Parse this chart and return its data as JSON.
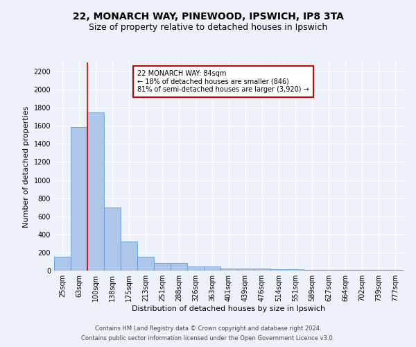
{
  "title1": "22, MONARCH WAY, PINEWOOD, IPSWICH, IP8 3TA",
  "title2": "Size of property relative to detached houses in Ipswich",
  "xlabel": "Distribution of detached houses by size in Ipswich",
  "ylabel": "Number of detached properties",
  "categories": [
    "25sqm",
    "63sqm",
    "100sqm",
    "138sqm",
    "175sqm",
    "213sqm",
    "251sqm",
    "288sqm",
    "326sqm",
    "363sqm",
    "401sqm",
    "439sqm",
    "476sqm",
    "514sqm",
    "551sqm",
    "589sqm",
    "627sqm",
    "664sqm",
    "702sqm",
    "739sqm",
    "777sqm"
  ],
  "values": [
    155,
    1590,
    1750,
    700,
    320,
    155,
    85,
    85,
    45,
    45,
    25,
    20,
    20,
    15,
    15,
    10,
    10,
    5,
    5,
    5,
    5
  ],
  "bar_color": "#aec6e8",
  "bar_edge_color": "#5b9bd5",
  "vline_color": "#cc0000",
  "vline_x_index": 1.5,
  "annotation_text": "22 MONARCH WAY: 84sqm\n← 18% of detached houses are smaller (846)\n81% of semi-detached houses are larger (3,920) →",
  "annotation_box_color": "#ffffff",
  "annotation_box_edge": "#cc0000",
  "ylim": [
    0,
    2300
  ],
  "yticks": [
    0,
    200,
    400,
    600,
    800,
    1000,
    1200,
    1400,
    1600,
    1800,
    2000,
    2200
  ],
  "footer1": "Contains HM Land Registry data © Crown copyright and database right 2024.",
  "footer2": "Contains public sector information licensed under the Open Government Licence v3.0.",
  "bg_color": "#edf2fa",
  "grid_color": "#ffffff",
  "title1_fontsize": 10,
  "title2_fontsize": 9,
  "tick_fontsize": 7,
  "ylabel_fontsize": 8,
  "xlabel_fontsize": 8,
  "footer_fontsize": 6,
  "annot_fontsize": 7
}
